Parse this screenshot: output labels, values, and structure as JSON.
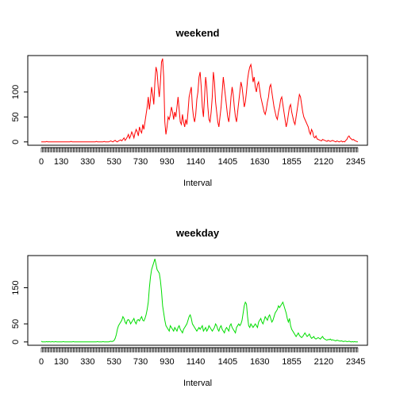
{
  "chart_data": [
    {
      "type": "line",
      "title": "weekend",
      "xlabel": "Interval",
      "categories": [
        "0",
        null,
        null,
        null,
        null,
        null,
        null,
        null,
        null,
        null,
        null,
        null,
        null,
        null,
        null,
        null,
        null,
        null,
        "130",
        null,
        null,
        null,
        null,
        null,
        null,
        null,
        null,
        null,
        null,
        null,
        null,
        null,
        null,
        null,
        null,
        null,
        null,
        null,
        null,
        null,
        null,
        null,
        "330",
        null,
        null,
        null,
        null,
        null,
        null,
        null,
        null,
        null,
        null,
        null,
        null,
        null,
        null,
        null,
        null,
        null,
        null,
        null,
        null,
        null,
        null,
        null,
        "530",
        null,
        null,
        null,
        null,
        null,
        null,
        null,
        null,
        null,
        null,
        null,
        null,
        null,
        null,
        null,
        null,
        null,
        null,
        null,
        null,
        null,
        null,
        null,
        "730",
        null,
        null,
        null,
        null,
        null,
        null,
        null,
        null,
        null,
        null,
        null,
        null,
        null,
        null,
        null,
        null,
        null,
        null,
        null,
        null,
        null,
        null,
        null,
        "930",
        null,
        null,
        null,
        null,
        null,
        null,
        null,
        null,
        null,
        null,
        null,
        null,
        null,
        null,
        null,
        null,
        null,
        null,
        null,
        null,
        null,
        null,
        null,
        null,
        null,
        "1140",
        null,
        null,
        null,
        null,
        null,
        null,
        null,
        null,
        null,
        null,
        null,
        null,
        null,
        null,
        null,
        null,
        null,
        null,
        null,
        null,
        null,
        null,
        null,
        null,
        null,
        null,
        null,
        null,
        "1405",
        null,
        null,
        null,
        null,
        null,
        null,
        null,
        null,
        null,
        null,
        null,
        null,
        null,
        null,
        null,
        null,
        null,
        null,
        null,
        null,
        null,
        null,
        null,
        null,
        null,
        null,
        null,
        null,
        "1630",
        null,
        null,
        null,
        null,
        null,
        null,
        null,
        null,
        null,
        null,
        null,
        null,
        null,
        null,
        null,
        null,
        null,
        null,
        null,
        null,
        null,
        null,
        null,
        null,
        null,
        null,
        null,
        null,
        "1855",
        null,
        null,
        null,
        null,
        null,
        null,
        null,
        null,
        null,
        null,
        null,
        null,
        null,
        null,
        null,
        null,
        null,
        null,
        null,
        null,
        null,
        null,
        null,
        null,
        null,
        null,
        null,
        null,
        "2120",
        null,
        null,
        null,
        null,
        null,
        null,
        null,
        null,
        null,
        null,
        null,
        null,
        null,
        null,
        null,
        null,
        null,
        null,
        null,
        null,
        null,
        null,
        null,
        null,
        null,
        null,
        null,
        null,
        "2345",
        null,
        null
      ],
      "series": [
        {
          "name": "weekend",
          "color": "#ff0000",
          "values": [
            0,
            0,
            0,
            0,
            0,
            1,
            0,
            0,
            0,
            0,
            0,
            0,
            0,
            0,
            0,
            0,
            0,
            0,
            0,
            0,
            0,
            0,
            0,
            0,
            0,
            0,
            0,
            1,
            0,
            0,
            0,
            0,
            0,
            0,
            0,
            0,
            0,
            0,
            0,
            0,
            0,
            0,
            0,
            0,
            0,
            0,
            0,
            0,
            0,
            0,
            1,
            0,
            0,
            0,
            0,
            0,
            0,
            1,
            0,
            0,
            0,
            0,
            1,
            2,
            1,
            0,
            2,
            3,
            1,
            0,
            2,
            3,
            4,
            2,
            5,
            8,
            3,
            6,
            10,
            15,
            7,
            12,
            20,
            15,
            8,
            18,
            25,
            20,
            12,
            30,
            22,
            18,
            35,
            25,
            40,
            55,
            70,
            90,
            65,
            85,
            110,
            95,
            75,
            120,
            150,
            140,
            110,
            90,
            120,
            160,
            167,
            130,
            40,
            15,
            30,
            50,
            45,
            55,
            70,
            60,
            45,
            60,
            50,
            70,
            90,
            65,
            40,
            35,
            55,
            40,
            30,
            45,
            35,
            60,
            90,
            100,
            110,
            70,
            50,
            40,
            55,
            85,
            100,
            130,
            140,
            110,
            70,
            50,
            90,
            130,
            110,
            70,
            45,
            40,
            60,
            90,
            140,
            120,
            80,
            60,
            40,
            30,
            50,
            70,
            100,
            130,
            110,
            90,
            70,
            50,
            40,
            60,
            90,
            110,
            95,
            70,
            50,
            40,
            60,
            80,
            100,
            120,
            110,
            90,
            70,
            80,
            100,
            125,
            140,
            150,
            155,
            140,
            120,
            130,
            110,
            100,
            115,
            120,
            105,
            90,
            80,
            70,
            60,
            55,
            65,
            80,
            90,
            110,
            115,
            100,
            85,
            70,
            60,
            50,
            45,
            60,
            70,
            85,
            90,
            75,
            60,
            45,
            30,
            40,
            55,
            70,
            75,
            60,
            50,
            40,
            35,
            50,
            65,
            80,
            95,
            90,
            75,
            60,
            50,
            45,
            40,
            35,
            30,
            20,
            15,
            25,
            20,
            10,
            8,
            12,
            6,
            5,
            4,
            3,
            2,
            5,
            4,
            3,
            2,
            1,
            3,
            2,
            1,
            2,
            3,
            2,
            1,
            0,
            2,
            1,
            0,
            1,
            2,
            0,
            1,
            0,
            3,
            5,
            10,
            12,
            8,
            6,
            4,
            5,
            3,
            2,
            1,
            0
          ]
        }
      ],
      "ylim": [
        -6.7,
        173
      ],
      "yticks": [
        0,
        50,
        100
      ]
    },
    {
      "type": "line",
      "title": "weekday",
      "xlabel": "Interval",
      "categories": [
        "0",
        null,
        null,
        null,
        null,
        null,
        null,
        null,
        null,
        null,
        null,
        null,
        null,
        null,
        null,
        null,
        null,
        null,
        "130",
        null,
        null,
        null,
        null,
        null,
        null,
        null,
        null,
        null,
        null,
        null,
        null,
        null,
        null,
        null,
        null,
        null,
        null,
        null,
        null,
        null,
        null,
        null,
        "330",
        null,
        null,
        null,
        null,
        null,
        null,
        null,
        null,
        null,
        null,
        null,
        null,
        null,
        null,
        null,
        null,
        null,
        null,
        null,
        null,
        null,
        null,
        null,
        "530",
        null,
        null,
        null,
        null,
        null,
        null,
        null,
        null,
        null,
        null,
        null,
        null,
        null,
        null,
        null,
        null,
        null,
        null,
        null,
        null,
        null,
        null,
        null,
        "730",
        null,
        null,
        null,
        null,
        null,
        null,
        null,
        null,
        null,
        null,
        null,
        null,
        null,
        null,
        null,
        null,
        null,
        null,
        null,
        null,
        null,
        null,
        null,
        "930",
        null,
        null,
        null,
        null,
        null,
        null,
        null,
        null,
        null,
        null,
        null,
        null,
        null,
        null,
        null,
        null,
        null,
        null,
        null,
        null,
        null,
        null,
        null,
        null,
        null,
        "1140",
        null,
        null,
        null,
        null,
        null,
        null,
        null,
        null,
        null,
        null,
        null,
        null,
        null,
        null,
        null,
        null,
        null,
        null,
        null,
        null,
        null,
        null,
        null,
        null,
        null,
        null,
        null,
        null,
        "1405",
        null,
        null,
        null,
        null,
        null,
        null,
        null,
        null,
        null,
        null,
        null,
        null,
        null,
        null,
        null,
        null,
        null,
        null,
        null,
        null,
        null,
        null,
        null,
        null,
        null,
        null,
        null,
        null,
        "1630",
        null,
        null,
        null,
        null,
        null,
        null,
        null,
        null,
        null,
        null,
        null,
        null,
        null,
        null,
        null,
        null,
        null,
        null,
        null,
        null,
        null,
        null,
        null,
        null,
        null,
        null,
        null,
        null,
        "1855",
        null,
        null,
        null,
        null,
        null,
        null,
        null,
        null,
        null,
        null,
        null,
        null,
        null,
        null,
        null,
        null,
        null,
        null,
        null,
        null,
        null,
        null,
        null,
        null,
        null,
        null,
        null,
        null,
        "2120",
        null,
        null,
        null,
        null,
        null,
        null,
        null,
        null,
        null,
        null,
        null,
        null,
        null,
        null,
        null,
        null,
        null,
        null,
        null,
        null,
        null,
        null,
        null,
        null,
        null,
        null,
        null,
        null,
        "2345",
        null,
        null
      ],
      "series": [
        {
          "name": "weekday",
          "color": "#00dd00",
          "values": [
            2,
            0,
            0,
            0,
            0,
            1,
            0,
            1,
            0,
            0,
            1,
            0,
            0,
            1,
            0,
            0,
            0,
            0,
            0,
            0,
            1,
            0,
            0,
            0,
            0,
            0,
            0,
            0,
            0,
            1,
            0,
            0,
            0,
            0,
            0,
            0,
            0,
            0,
            0,
            0,
            0,
            0,
            0,
            0,
            0,
            0,
            0,
            0,
            0,
            0,
            0,
            1,
            0,
            0,
            0,
            0,
            1,
            0,
            0,
            0,
            0,
            0,
            1,
            2,
            1,
            2,
            4,
            10,
            20,
            35,
            45,
            50,
            55,
            60,
            70,
            65,
            55,
            50,
            60,
            62,
            58,
            50,
            55,
            60,
            65,
            55,
            50,
            60,
            62,
            58,
            65,
            70,
            60,
            58,
            65,
            75,
            90,
            110,
            150,
            180,
            200,
            210,
            220,
            230,
            215,
            200,
            195,
            190,
            170,
            140,
            100,
            80,
            60,
            45,
            40,
            35,
            30,
            45,
            40,
            35,
            30,
            40,
            35,
            30,
            40,
            45,
            35,
            30,
            25,
            35,
            40,
            45,
            50,
            60,
            70,
            75,
            65,
            50,
            45,
            40,
            35,
            30,
            35,
            40,
            35,
            40,
            45,
            30,
            35,
            40,
            30,
            35,
            45,
            40,
            35,
            30,
            35,
            40,
            50,
            45,
            35,
            30,
            40,
            45,
            35,
            30,
            25,
            35,
            40,
            35,
            30,
            45,
            50,
            40,
            35,
            30,
            25,
            40,
            45,
            50,
            45,
            50,
            60,
            80,
            100,
            110,
            105,
            70,
            45,
            40,
            50,
            45,
            40,
            45,
            50,
            45,
            40,
            55,
            60,
            65,
            55,
            50,
            60,
            70,
            65,
            60,
            70,
            75,
            65,
            55,
            60,
            70,
            80,
            85,
            90,
            100,
            95,
            100,
            105,
            110,
            100,
            90,
            80,
            65,
            55,
            65,
            45,
            35,
            30,
            25,
            20,
            15,
            20,
            25,
            18,
            15,
            12,
            15,
            20,
            25,
            20,
            15,
            18,
            22,
            15,
            10,
            12,
            15,
            10,
            8,
            10,
            12,
            10,
            8,
            12,
            15,
            10,
            8,
            6,
            5,
            7,
            6,
            8,
            5,
            6,
            5,
            4,
            3,
            5,
            4,
            3,
            2,
            3,
            2,
            1,
            2,
            2,
            1,
            1,
            2,
            1,
            0,
            1,
            0,
            1,
            0,
            0,
            0
          ]
        }
      ],
      "ylim": [
        -9.2,
        239
      ],
      "yticks": [
        0,
        50,
        150
      ]
    }
  ]
}
